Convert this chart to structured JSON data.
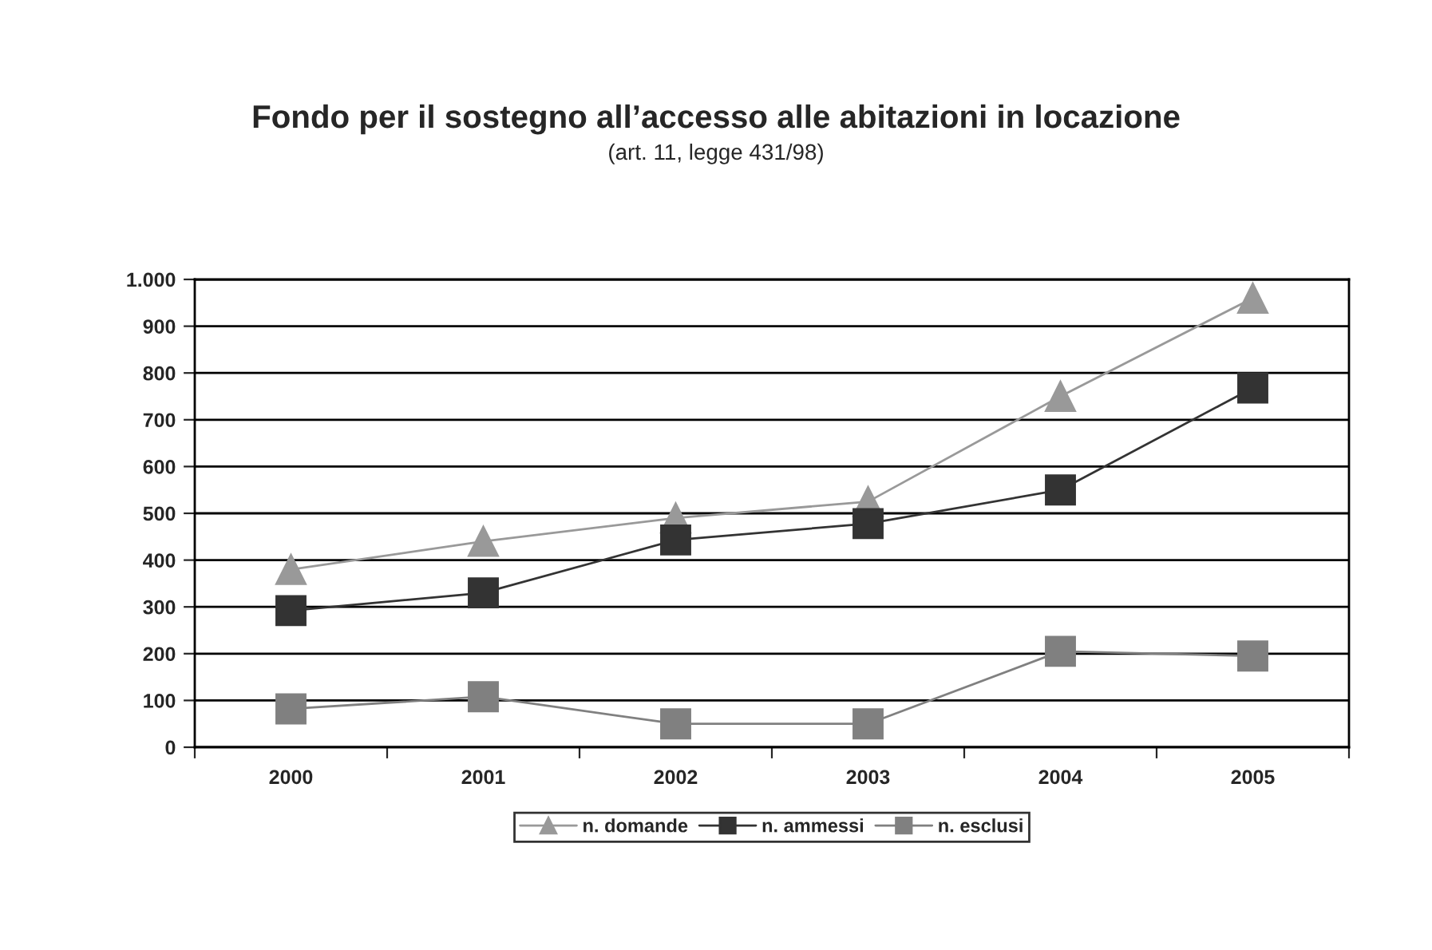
{
  "chart_data": {
    "type": "line",
    "title": "Fondo per il sostegno all’accesso alle abitazioni in locazione",
    "subtitle": "(art. 11, legge 431/98)",
    "categories": [
      "2000",
      "2001",
      "2002",
      "2003",
      "2004",
      "2005"
    ],
    "series": [
      {
        "name": "n. domande",
        "color": "#999999",
        "marker": "triangle",
        "values": [
          380,
          440,
          490,
          525,
          750,
          960
        ]
      },
      {
        "name": "n. ammessi",
        "color": "#333333",
        "marker": "square",
        "values": [
          292,
          330,
          443,
          478,
          550,
          768
        ]
      },
      {
        "name": "n. esclusi",
        "color": "#808080",
        "marker": "square",
        "values": [
          82,
          108,
          50,
          50,
          205,
          195
        ]
      }
    ],
    "ylim": [
      0,
      1000
    ],
    "yticks": [
      0,
      100,
      200,
      300,
      400,
      500,
      600,
      700,
      800,
      900,
      {
        "value": 1000,
        "label": "1.000"
      }
    ],
    "grid": "y",
    "legend": "bottom",
    "line_style": "solid"
  }
}
